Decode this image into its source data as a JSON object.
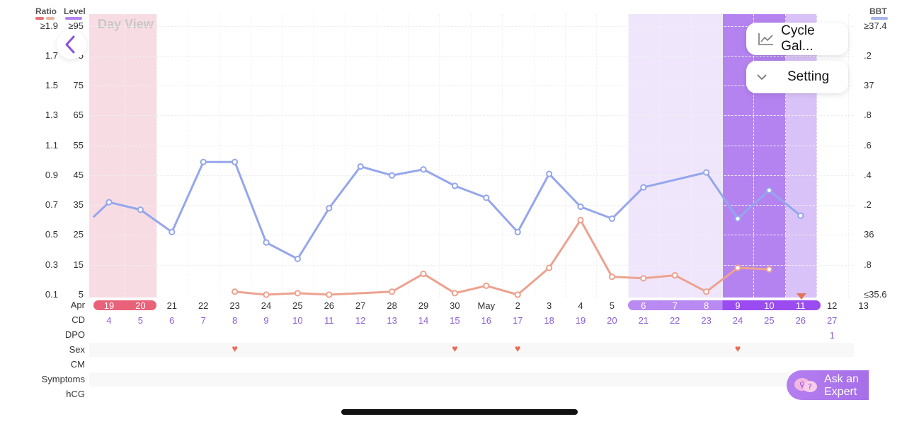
{
  "header": {
    "ratio_label": "Ratio",
    "level_label": "Level",
    "bbt_label": "BBT",
    "day_view_label": "Day View"
  },
  "colors": {
    "ratio": "#e8727a",
    "level": "#f0b0a0",
    "bbt": "#a8b4ec",
    "blue_line": "#95a6ec",
    "orange_line": "#eda28f",
    "period_band": "#f8dce3",
    "fertile_band": "#efe6fc",
    "ovulation_band": "#cba8f7",
    "peak_band": "#b483f0",
    "heart": "#eb6a52"
  },
  "axes": {
    "ratio_ticks": [
      "≥1.9",
      "1.7",
      "1.5",
      "1.3",
      "1.1",
      "0.9",
      "0.7",
      "0.5",
      "0.3",
      "0.1"
    ],
    "level_ticks": [
      "≥95",
      "85",
      "75",
      "65",
      "55",
      "45",
      "35",
      "25",
      "15",
      "5"
    ],
    "bbt_ticks": [
      "≥37.4",
      ".2",
      "37",
      ".8",
      ".6",
      ".4",
      ".2",
      "36",
      ".8",
      "≤35.6"
    ]
  },
  "rows": {
    "apr": "Apr",
    "cd": "CD",
    "dpo": "DPO",
    "sex": "Sex",
    "cm": "CM",
    "symptoms": "Symptoms",
    "hcg": "hCG"
  },
  "dates": [
    "19",
    "20",
    "21",
    "22",
    "23",
    "24",
    "25",
    "26",
    "27",
    "28",
    "29",
    "30",
    "May",
    "2",
    "3",
    "4",
    "5",
    "6",
    "7",
    "8",
    "9",
    "10",
    "11",
    "12",
    "13"
  ],
  "cd": [
    "4",
    "5",
    "6",
    "7",
    "8",
    "9",
    "10",
    "11",
    "12",
    "13",
    "14",
    "15",
    "16",
    "17",
    "18",
    "19",
    "20",
    "21",
    "22",
    "23",
    "24",
    "25",
    "26",
    "27"
  ],
  "dpo": {
    "label_value": "1",
    "day_index": 23
  },
  "sex_days": [
    4,
    11,
    13,
    20
  ],
  "buttons": {
    "cycle_gallery": "Cycle Gal...",
    "setting": "Setting",
    "ask_expert_line1": "Ask an",
    "ask_expert_line2": "Expert"
  },
  "chart_data": {
    "type": "line",
    "x_day_index": [
      0,
      1,
      2,
      3,
      4,
      5,
      6,
      7,
      8,
      9,
      10,
      11,
      12,
      13,
      14,
      15,
      16,
      17,
      18,
      19,
      20,
      21,
      22
    ],
    "series": [
      {
        "values_bbt_level_scale": [
          31,
          36,
          33.5,
          26,
          49.5,
          49.5,
          22.5,
          17,
          34,
          48,
          45,
          47,
          41.5,
          37.5,
          26,
          45.5,
          34.5,
          30.5,
          41,
          null,
          46,
          30.5,
          40,
          31.5
        ],
        "x_indices": [
          -0.5,
          0,
          1,
          2,
          3,
          4,
          5,
          6,
          7,
          8,
          9,
          10,
          11,
          12,
          13,
          14,
          15,
          16,
          17,
          18,
          19,
          20,
          21,
          22
        ]
      },
      {
        "values_level": [
          6,
          5,
          5.5,
          5,
          6,
          12,
          5.5,
          8,
          5,
          14,
          30,
          11,
          10.5,
          11.5,
          6,
          14,
          13.5
        ],
        "x_indices": [
          4,
          5,
          6,
          7,
          9,
          10,
          11,
          12,
          13,
          14,
          15,
          16,
          17,
          18,
          19,
          20,
          21
        ]
      }
    ]
  }
}
